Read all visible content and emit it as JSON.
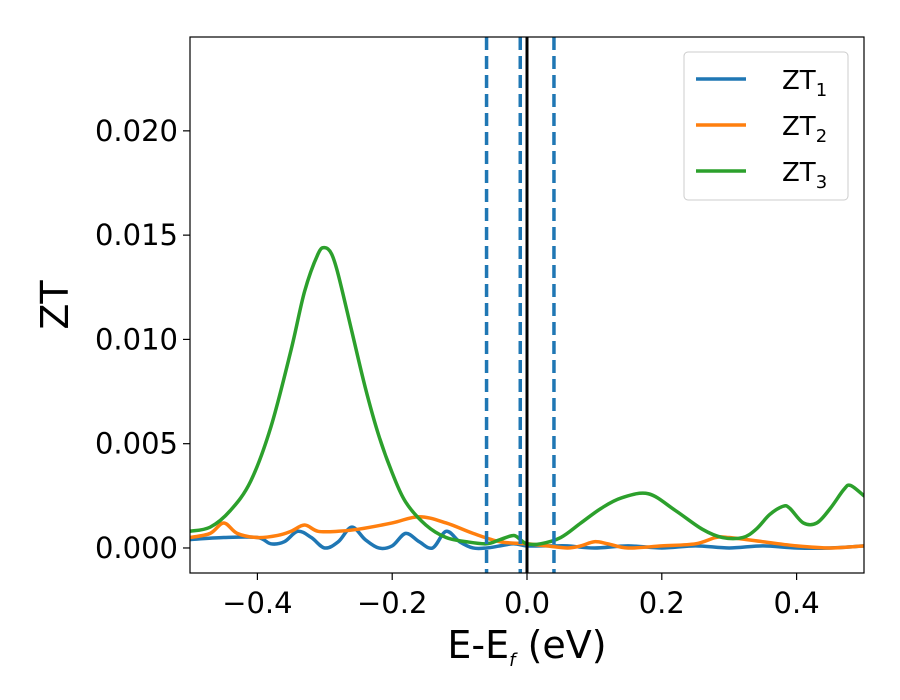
{
  "chart_data": {
    "type": "line",
    "xlabel_main": "E-E",
    "xlabel_sub": "f",
    "xlabel_unit": " (eV)",
    "ylabel": "ZT",
    "xlim": [
      -0.5,
      0.5
    ],
    "ylim": [
      -0.0012,
      0.0245
    ],
    "xticks": [
      -0.4,
      -0.2,
      0.0,
      0.2,
      0.4
    ],
    "xtick_labels": [
      "−0.4",
      "−0.2",
      "0.0",
      "0.2",
      "0.4"
    ],
    "yticks": [
      0.0,
      0.005,
      0.01,
      0.015,
      0.02
    ],
    "ytick_labels": [
      "0.000",
      "0.005",
      "0.010",
      "0.015",
      "0.020"
    ],
    "vlines": [
      {
        "x": -0.06,
        "style": "dashed",
        "color": "#1f77b4"
      },
      {
        "x": -0.01,
        "style": "dashed",
        "color": "#1f77b4"
      },
      {
        "x": 0.0,
        "style": "solid",
        "color": "#000000"
      },
      {
        "x": 0.04,
        "style": "dashed",
        "color": "#1f77b4"
      }
    ],
    "legend_position": "top-right",
    "series": [
      {
        "name_main": "ZT",
        "name_sub": "1",
        "color": "#1f77b4",
        "x": [
          -0.5,
          -0.45,
          -0.4,
          -0.38,
          -0.36,
          -0.34,
          -0.32,
          -0.3,
          -0.28,
          -0.26,
          -0.24,
          -0.22,
          -0.2,
          -0.18,
          -0.16,
          -0.14,
          -0.12,
          -0.1,
          -0.08,
          -0.06,
          -0.04,
          -0.02,
          0.0,
          0.02,
          0.04,
          0.06,
          0.1,
          0.15,
          0.2,
          0.25,
          0.3,
          0.35,
          0.4,
          0.45,
          0.5
        ],
        "y": [
          0.0004,
          0.0005,
          0.0005,
          0.0002,
          0.0003,
          0.0008,
          0.0005,
          0.0,
          0.0003,
          0.001,
          0.0004,
          0.0,
          0.0001,
          0.0007,
          0.0003,
          0.0,
          0.0008,
          0.0003,
          0.0,
          0.0,
          0.0001,
          0.0002,
          0.0001,
          0.0001,
          0.0001,
          0.0001,
          0.0,
          0.0001,
          0.0,
          0.0001,
          0.0,
          0.0001,
          0.0,
          0.0,
          0.0001
        ]
      },
      {
        "name_main": "ZT",
        "name_sub": "2",
        "color": "#ff7f0e",
        "x": [
          -0.5,
          -0.47,
          -0.45,
          -0.43,
          -0.4,
          -0.37,
          -0.35,
          -0.33,
          -0.31,
          -0.28,
          -0.25,
          -0.2,
          -0.16,
          -0.12,
          -0.08,
          -0.04,
          0.0,
          0.03,
          0.06,
          0.08,
          0.1,
          0.12,
          0.15,
          0.2,
          0.25,
          0.28,
          0.3,
          0.35,
          0.4,
          0.45,
          0.5
        ],
        "y": [
          0.0005,
          0.0007,
          0.0012,
          0.0007,
          0.0005,
          0.0006,
          0.0008,
          0.0011,
          0.0008,
          0.0008,
          0.0009,
          0.0012,
          0.0015,
          0.0012,
          0.0007,
          0.0003,
          0.0002,
          0.0001,
          0.0,
          0.0001,
          0.0003,
          0.0002,
          0.0,
          0.0001,
          0.0002,
          0.0005,
          0.0005,
          0.0003,
          0.0001,
          0.0,
          0.0001
        ]
      },
      {
        "name_main": "ZT",
        "name_sub": "3",
        "color": "#2ca02c",
        "x": [
          -0.5,
          -0.47,
          -0.44,
          -0.41,
          -0.38,
          -0.35,
          -0.33,
          -0.31,
          -0.3,
          -0.29,
          -0.28,
          -0.26,
          -0.24,
          -0.22,
          -0.2,
          -0.18,
          -0.15,
          -0.12,
          -0.09,
          -0.06,
          -0.04,
          -0.02,
          -0.01,
          0.0,
          0.02,
          0.05,
          0.08,
          0.11,
          0.14,
          0.18,
          0.22,
          0.26,
          0.29,
          0.32,
          0.34,
          0.36,
          0.38,
          0.39,
          0.41,
          0.43,
          0.45,
          0.47,
          0.48,
          0.5
        ],
        "y": [
          0.0008,
          0.001,
          0.0018,
          0.0032,
          0.0058,
          0.0095,
          0.0123,
          0.0141,
          0.0144,
          0.0141,
          0.0131,
          0.0104,
          0.0077,
          0.0054,
          0.0036,
          0.0022,
          0.0011,
          0.0005,
          0.0003,
          0.0002,
          0.0004,
          0.0006,
          0.0004,
          0.0002,
          0.0002,
          0.0005,
          0.0012,
          0.0019,
          0.0024,
          0.0026,
          0.0018,
          0.0009,
          0.0005,
          0.0005,
          0.0009,
          0.0016,
          0.002,
          0.0019,
          0.0012,
          0.0012,
          0.0019,
          0.0028,
          0.003,
          0.0025
        ]
      }
    ]
  }
}
